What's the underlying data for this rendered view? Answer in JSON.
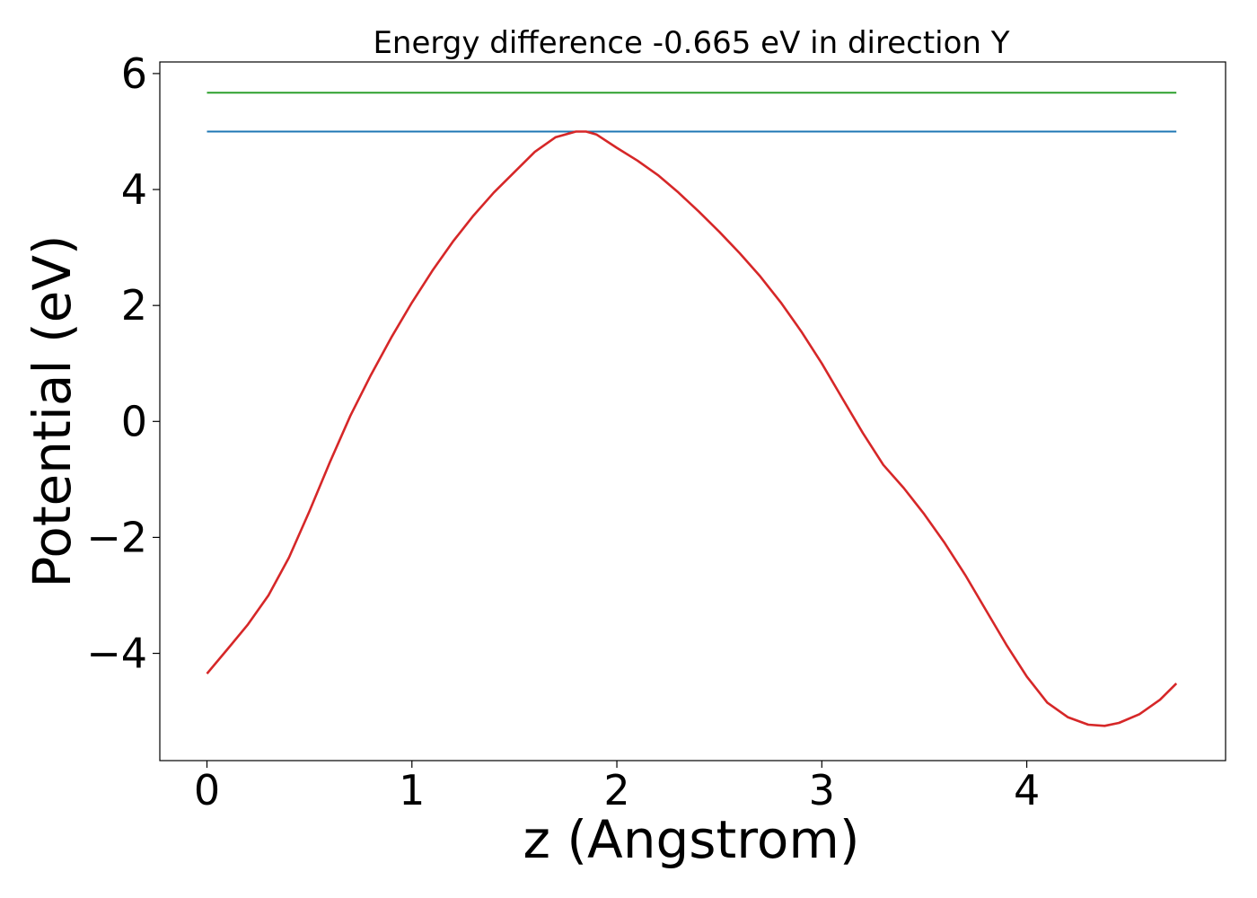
{
  "chart_data": {
    "type": "line",
    "title": "Energy difference -0.665 eV in direction Y",
    "xlabel": "z (Angstrom)",
    "ylabel": "Potential (eV)",
    "xlim": [
      -0.23,
      4.97
    ],
    "ylim": [
      -5.85,
      6.2
    ],
    "xticks": [
      0,
      1,
      2,
      3,
      4
    ],
    "yticks": [
      -4,
      -2,
      0,
      2,
      4,
      6
    ],
    "xtick_labels": [
      "0",
      "1",
      "2",
      "3",
      "4"
    ],
    "ytick_labels": [
      "−4",
      "−2",
      "0",
      "2",
      "4",
      "6"
    ],
    "grid": false,
    "series": [
      {
        "color": "#2ca02c",
        "x": [
          0,
          4.73
        ],
        "y": [
          5.67,
          5.67
        ]
      },
      {
        "color": "#1f77b4",
        "x": [
          0,
          4.73
        ],
        "y": [
          5.0,
          5.0
        ]
      },
      {
        "color": "#d62728",
        "x": [
          0,
          0.1,
          0.2,
          0.3,
          0.4,
          0.5,
          0.6,
          0.7,
          0.8,
          0.9,
          1.0,
          1.1,
          1.2,
          1.3,
          1.4,
          1.5,
          1.6,
          1.7,
          1.8,
          1.85,
          1.9,
          2.0,
          2.1,
          2.2,
          2.3,
          2.4,
          2.5,
          2.6,
          2.7,
          2.8,
          2.9,
          3.0,
          3.1,
          3.2,
          3.3,
          3.4,
          3.5,
          3.6,
          3.7,
          3.8,
          3.9,
          4.0,
          4.1,
          4.2,
          4.3,
          4.38,
          4.45,
          4.55,
          4.65,
          4.73
        ],
        "y": [
          -4.35,
          -3.93,
          -3.5,
          -3.0,
          -2.35,
          -1.55,
          -0.7,
          0.1,
          0.8,
          1.45,
          2.05,
          2.6,
          3.1,
          3.55,
          3.95,
          4.3,
          4.65,
          4.9,
          5.0,
          5.0,
          4.95,
          4.72,
          4.5,
          4.25,
          3.95,
          3.62,
          3.27,
          2.9,
          2.5,
          2.05,
          1.55,
          1.0,
          0.4,
          -0.2,
          -0.75,
          -1.15,
          -1.6,
          -2.1,
          -2.65,
          -3.25,
          -3.85,
          -4.4,
          -4.85,
          -5.1,
          -5.23,
          -5.25,
          -5.2,
          -5.05,
          -4.8,
          -4.52
        ]
      }
    ]
  }
}
